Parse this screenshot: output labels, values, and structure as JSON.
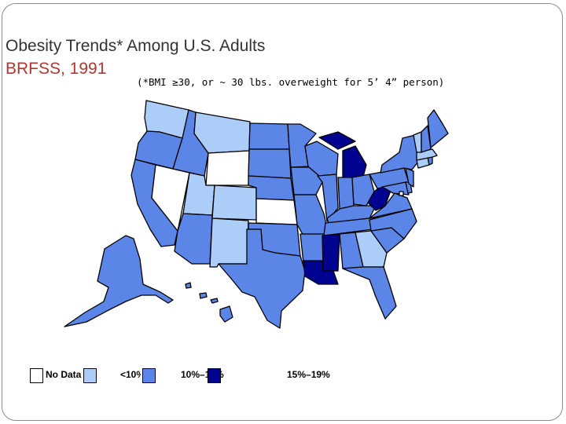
{
  "title": "Obesity Trends* Among U.S. Adults",
  "subtitle": "BRFSS, 1991",
  "footnote": "(*BMI ≥30, or ~ 30 lbs. overweight for 5’ 4” person)",
  "colors": {
    "no_data": "#ffffff",
    "lt10": "#abcdf7",
    "p10_14": "#5b86e8",
    "p15_19": "#00038f"
  },
  "legend": [
    {
      "key": "no_data",
      "label": "No Data"
    },
    {
      "key": "lt10",
      "label": "<10%"
    },
    {
      "key": "p10_14",
      "label": "10%–14%"
    },
    {
      "key": "p15_19",
      "label": "15%–19%"
    }
  ],
  "state_categories": {
    "no_data": [
      "NV",
      "WY",
      "KS",
      "DC"
    ],
    "lt10": [
      "WA",
      "MT",
      "UT",
      "CO",
      "NM",
      "GA",
      "CT",
      "MA",
      "VT"
    ],
    "p15_19": [
      "MI",
      "WV",
      "MS",
      "LA"
    ],
    "p10_14": [
      "OR",
      "CA",
      "ID",
      "AZ",
      "ND",
      "SD",
      "NE",
      "OK",
      "TX",
      "MN",
      "IA",
      "MO",
      "AR",
      "WI",
      "IL",
      "IN",
      "OH",
      "KY",
      "TN",
      "AL",
      "FL",
      "SC",
      "NC",
      "VA",
      "MD",
      "DE",
      "NJ",
      "PA",
      "NY",
      "NH",
      "ME",
      "RI",
      "AK",
      "HI"
    ]
  }
}
